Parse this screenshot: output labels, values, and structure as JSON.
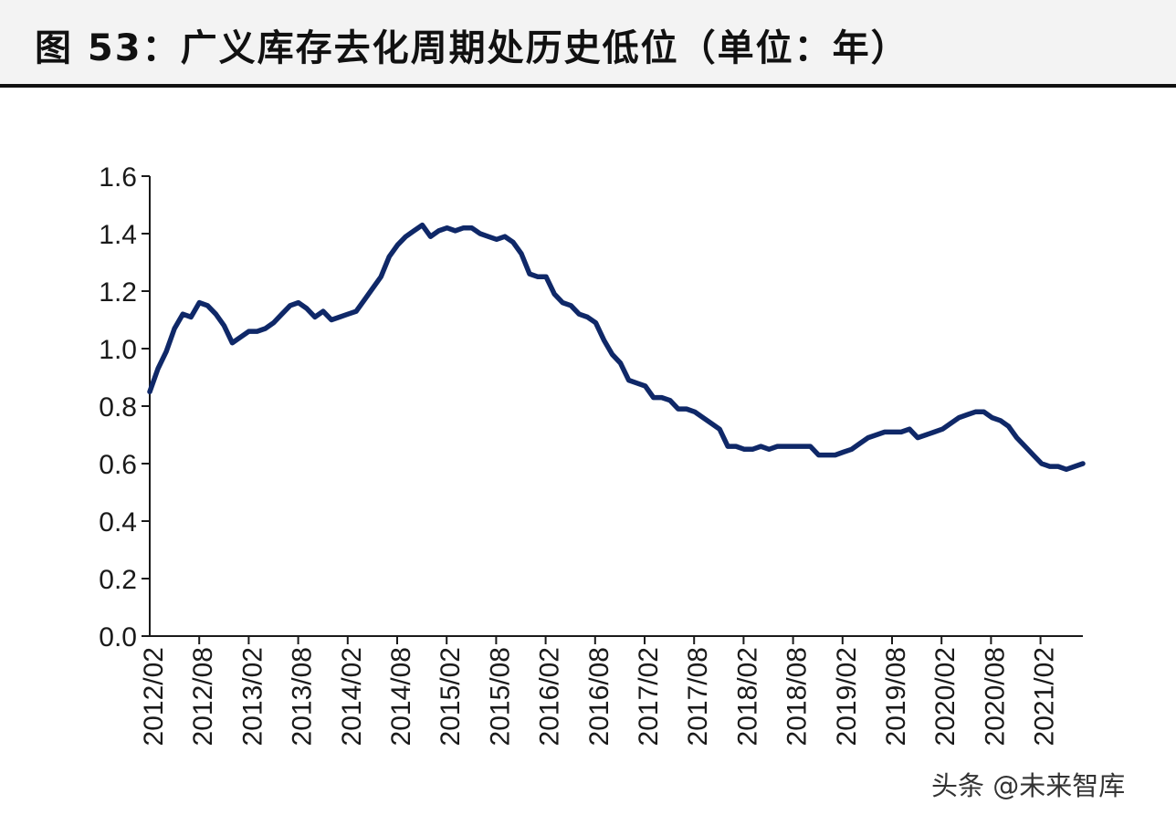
{
  "title": "图 53：广义库存去化周期处历史低位（单位：年）",
  "watermark": "头条 @未来智库",
  "colors": {
    "line": "#0f2868",
    "axis": "#1a1a1a",
    "title_bg": "#f3f3f3"
  },
  "chart_data": {
    "type": "line",
    "title": "",
    "xlabel": "",
    "ylabel": "",
    "ylim": [
      0.0,
      1.6
    ],
    "y_ticks": [
      "0.0",
      "0.2",
      "0.4",
      "0.6",
      "0.8",
      "1.0",
      "1.2",
      "1.4",
      "1.6"
    ],
    "x_tick_labels": [
      "2012/02",
      "2012/08",
      "2013/02",
      "2013/08",
      "2014/02",
      "2014/08",
      "2015/02",
      "2015/08",
      "2016/02",
      "2016/08",
      "2017/02",
      "2017/08",
      "2018/02",
      "2018/08",
      "2019/02",
      "2019/08",
      "2020/02",
      "2020/08",
      "2021/02"
    ],
    "grid": false,
    "legend": "none",
    "series": [
      {
        "values": [
          0.85,
          0.93,
          0.99,
          1.07,
          1.12,
          1.11,
          1.16,
          1.15,
          1.12,
          1.08,
          1.02,
          1.04,
          1.06,
          1.06,
          1.07,
          1.09,
          1.12,
          1.15,
          1.16,
          1.14,
          1.11,
          1.13,
          1.1,
          1.11,
          1.12,
          1.13,
          1.17,
          1.21,
          1.25,
          1.32,
          1.36,
          1.39,
          1.41,
          1.43,
          1.39,
          1.41,
          1.42,
          1.41,
          1.42,
          1.42,
          1.4,
          1.39,
          1.38,
          1.39,
          1.37,
          1.33,
          1.26,
          1.25,
          1.25,
          1.19,
          1.16,
          1.15,
          1.12,
          1.11,
          1.09,
          1.03,
          0.98,
          0.95,
          0.89,
          0.88,
          0.87,
          0.83,
          0.83,
          0.82,
          0.79,
          0.79,
          0.78,
          0.76,
          0.74,
          0.72,
          0.66,
          0.66,
          0.65,
          0.65,
          0.66,
          0.65,
          0.66,
          0.66,
          0.66,
          0.66,
          0.66,
          0.63,
          0.63,
          0.63,
          0.64,
          0.65,
          0.67,
          0.69,
          0.7,
          0.71,
          0.71,
          0.71,
          0.72,
          0.69,
          0.7,
          0.71,
          0.72,
          0.74,
          0.76,
          0.77,
          0.78,
          0.78,
          0.76,
          0.75,
          0.73,
          0.69,
          0.66,
          0.63,
          0.6,
          0.59,
          0.59,
          0.58,
          0.59,
          0.6
        ]
      }
    ]
  }
}
